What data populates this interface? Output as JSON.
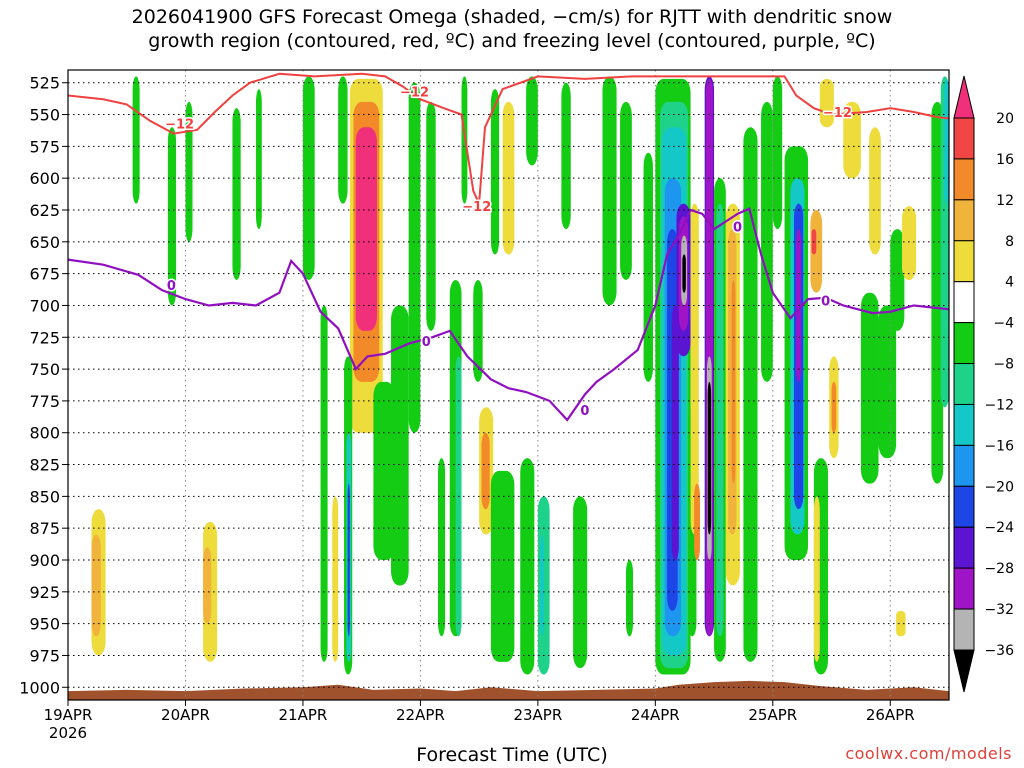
{
  "chart_data": {
    "type": "heatmap",
    "title_line1": "2026041900 GFS Forecast Omega (shaded, −cm/s) for RJTT with dendritic snow",
    "title_line2": "growth region (contoured, red, ºC) and freezing level (contoured, purple, ºC)",
    "xlabel": "Forecast Time (UTC)",
    "credit": "coolwx.com/models",
    "x_ticks": [
      "19APR",
      "20APR",
      "21APR",
      "22APR",
      "23APR",
      "24APR",
      "25APR",
      "26APR"
    ],
    "x_year": "2026",
    "y_ticks": [
      "525",
      "550",
      "575",
      "600",
      "625",
      "650",
      "675",
      "700",
      "725",
      "750",
      "775",
      "800",
      "825",
      "850",
      "875",
      "900",
      "925",
      "950",
      "975",
      "1000"
    ],
    "y_range_hpa": [
      515,
      1010
    ],
    "x_range_days": [
      0,
      7.5
    ],
    "colorbar": {
      "labels": [
        "20",
        "16",
        "12",
        "8",
        "4",
        "−4",
        "−8",
        "−12",
        "−16",
        "−20",
        "−24",
        "−28",
        "−32",
        "−36"
      ],
      "colors": [
        "#f0307a",
        "#f04646",
        "#f28a2a",
        "#f0b43c",
        "#eedc3c",
        "#ffffff",
        "#14cc14",
        "#1ed28a",
        "#14c8c8",
        "#1e96f0",
        "#1e46e6",
        "#5a14d2",
        "#a014c8",
        "#b4b4b4",
        "#000000"
      ]
    },
    "omega_bands": [
      {
        "x": 0.2,
        "w": 0.12,
        "p1": 860,
        "p2": 975,
        "v": 4
      },
      {
        "x": 0.2,
        "w": 0.08,
        "p1": 880,
        "p2": 960,
        "v": 8
      },
      {
        "x": 1.15,
        "w": 0.12,
        "p1": 870,
        "p2": 980,
        "v": 4
      },
      {
        "x": 1.15,
        "w": 0.07,
        "p1": 890,
        "p2": 950,
        "v": 8
      },
      {
        "x": 0.55,
        "w": 0.06,
        "p1": 520,
        "p2": 620,
        "v": -4
      },
      {
        "x": 0.85,
        "w": 0.07,
        "p1": 560,
        "p2": 700,
        "v": -4
      },
      {
        "x": 1.0,
        "w": 0.06,
        "p1": 540,
        "p2": 650,
        "v": -4
      },
      {
        "x": 1.4,
        "w": 0.07,
        "p1": 545,
        "p2": 680,
        "v": -4
      },
      {
        "x": 1.6,
        "w": 0.05,
        "p1": 530,
        "p2": 640,
        "v": -4
      },
      {
        "x": 2.0,
        "w": 0.1,
        "p1": 520,
        "p2": 680,
        "v": -4
      },
      {
        "x": 2.15,
        "w": 0.06,
        "p1": 700,
        "p2": 980,
        "v": -4
      },
      {
        "x": 2.25,
        "w": 0.05,
        "p1": 850,
        "p2": 980,
        "v": 4
      },
      {
        "x": 2.4,
        "w": 0.28,
        "p1": 522,
        "p2": 800,
        "v": 4
      },
      {
        "x": 2.43,
        "w": 0.22,
        "p1": 540,
        "p2": 760,
        "v": 12
      },
      {
        "x": 2.45,
        "w": 0.18,
        "p1": 560,
        "p2": 720,
        "v": 20
      },
      {
        "x": 2.3,
        "w": 0.08,
        "p1": 520,
        "p2": 620,
        "v": -4
      },
      {
        "x": 2.35,
        "w": 0.07,
        "p1": 740,
        "p2": 990,
        "v": -4
      },
      {
        "x": 2.37,
        "w": 0.04,
        "p1": 800,
        "p2": 980,
        "v": -12
      },
      {
        "x": 2.38,
        "w": 0.02,
        "p1": 840,
        "p2": 960,
        "v": -20
      },
      {
        "x": 2.6,
        "w": 0.18,
        "p1": 760,
        "p2": 900,
        "v": -4
      },
      {
        "x": 2.75,
        "w": 0.15,
        "p1": 700,
        "p2": 920,
        "v": -4
      },
      {
        "x": 2.9,
        "w": 0.1,
        "p1": 525,
        "p2": 800,
        "v": -4
      },
      {
        "x": 3.05,
        "w": 0.08,
        "p1": 540,
        "p2": 720,
        "v": -4
      },
      {
        "x": 3.15,
        "w": 0.06,
        "p1": 820,
        "p2": 960,
        "v": -4
      },
      {
        "x": 3.25,
        "w": 0.1,
        "p1": 680,
        "p2": 960,
        "v": -4
      },
      {
        "x": 3.3,
        "w": 0.05,
        "p1": 740,
        "p2": 960,
        "v": -8
      },
      {
        "x": 3.5,
        "w": 0.12,
        "p1": 780,
        "p2": 880,
        "v": 4
      },
      {
        "x": 3.52,
        "w": 0.07,
        "p1": 800,
        "p2": 860,
        "v": 12
      },
      {
        "x": 3.35,
        "w": 0.05,
        "p1": 520,
        "p2": 620,
        "v": -4
      },
      {
        "x": 3.6,
        "w": 0.07,
        "p1": 530,
        "p2": 660,
        "v": -4
      },
      {
        "x": 3.45,
        "w": 0.08,
        "p1": 680,
        "p2": 760,
        "v": -4
      },
      {
        "x": 3.6,
        "w": 0.2,
        "p1": 830,
        "p2": 980,
        "v": -4
      },
      {
        "x": 3.7,
        "w": 0.1,
        "p1": 540,
        "p2": 660,
        "v": 4
      },
      {
        "x": 3.9,
        "w": 0.1,
        "p1": 520,
        "p2": 590,
        "v": -4
      },
      {
        "x": 3.85,
        "w": 0.12,
        "p1": 820,
        "p2": 990,
        "v": -4
      },
      {
        "x": 4.0,
        "w": 0.1,
        "p1": 850,
        "p2": 990,
        "v": -8
      },
      {
        "x": 4.02,
        "w": 0.03,
        "p1": 880,
        "p2": 960,
        "v": -12
      },
      {
        "x": 4.2,
        "w": 0.08,
        "p1": 525,
        "p2": 640,
        "v": -4
      },
      {
        "x": 4.3,
        "w": 0.12,
        "p1": 850,
        "p2": 985,
        "v": -4
      },
      {
        "x": 4.55,
        "w": 0.12,
        "p1": 520,
        "p2": 700,
        "v": -4
      },
      {
        "x": 4.7,
        "w": 0.1,
        "p1": 540,
        "p2": 680,
        "v": -4
      },
      {
        "x": 4.75,
        "w": 0.06,
        "p1": 900,
        "p2": 960,
        "v": -4
      },
      {
        "x": 4.9,
        "w": 0.08,
        "p1": 580,
        "p2": 760,
        "v": -4
      },
      {
        "x": 5.0,
        "w": 0.3,
        "p1": 522,
        "p2": 990,
        "v": -4
      },
      {
        "x": 5.04,
        "w": 0.24,
        "p1": 540,
        "p2": 985,
        "v": -8
      },
      {
        "x": 5.06,
        "w": 0.2,
        "p1": 560,
        "p2": 975,
        "v": -12
      },
      {
        "x": 5.08,
        "w": 0.14,
        "p1": 600,
        "p2": 960,
        "v": -16
      },
      {
        "x": 5.1,
        "w": 0.09,
        "p1": 640,
        "p2": 940,
        "v": -20
      },
      {
        "x": 5.14,
        "w": 0.06,
        "p1": 700,
        "p2": 900,
        "v": -24
      },
      {
        "x": 5.18,
        "w": 0.12,
        "p1": 620,
        "p2": 740,
        "v": -24
      },
      {
        "x": 5.2,
        "w": 0.08,
        "p1": 630,
        "p2": 720,
        "v": -28
      },
      {
        "x": 5.22,
        "w": 0.05,
        "p1": 645,
        "p2": 700,
        "v": -32
      },
      {
        "x": 5.23,
        "w": 0.03,
        "p1": 660,
        "p2": 690,
        "v": -36
      },
      {
        "x": 5.28,
        "w": 0.07,
        "p1": 780,
        "p2": 960,
        "v": -4
      },
      {
        "x": 5.3,
        "w": 0.07,
        "p1": 620,
        "p2": 880,
        "v": 4
      },
      {
        "x": 5.33,
        "w": 0.05,
        "p1": 840,
        "p2": 900,
        "v": 12
      },
      {
        "x": 5.42,
        "w": 0.08,
        "p1": 520,
        "p2": 960,
        "v": -24
      },
      {
        "x": 5.43,
        "w": 0.06,
        "p1": 522,
        "p2": 960,
        "v": -28
      },
      {
        "x": 5.44,
        "w": 0.04,
        "p1": 740,
        "p2": 900,
        "v": -32
      },
      {
        "x": 5.445,
        "w": 0.03,
        "p1": 760,
        "p2": 880,
        "v": -36
      },
      {
        "x": 5.5,
        "w": 0.1,
        "p1": 600,
        "p2": 980,
        "v": -4
      },
      {
        "x": 5.52,
        "w": 0.06,
        "p1": 620,
        "p2": 960,
        "v": -8
      },
      {
        "x": 5.6,
        "w": 0.12,
        "p1": 620,
        "p2": 920,
        "v": 4
      },
      {
        "x": 5.62,
        "w": 0.07,
        "p1": 640,
        "p2": 880,
        "v": 8
      },
      {
        "x": 5.65,
        "w": 0.03,
        "p1": 680,
        "p2": 840,
        "v": 12
      },
      {
        "x": 5.75,
        "w": 0.12,
        "p1": 560,
        "p2": 980,
        "v": -4
      },
      {
        "x": 5.9,
        "w": 0.1,
        "p1": 540,
        "p2": 760,
        "v": -4
      },
      {
        "x": 6.0,
        "w": 0.08,
        "p1": 520,
        "p2": 640,
        "v": -4
      },
      {
        "x": 6.1,
        "w": 0.2,
        "p1": 575,
        "p2": 900,
        "v": -4
      },
      {
        "x": 6.15,
        "w": 0.12,
        "p1": 600,
        "p2": 880,
        "v": -12
      },
      {
        "x": 6.18,
        "w": 0.08,
        "p1": 620,
        "p2": 860,
        "v": -20
      },
      {
        "x": 6.2,
        "w": 0.04,
        "p1": 640,
        "p2": 760,
        "v": -28
      },
      {
        "x": 6.32,
        "w": 0.1,
        "p1": 625,
        "p2": 690,
        "v": 8
      },
      {
        "x": 6.33,
        "w": 0.04,
        "p1": 640,
        "p2": 660,
        "v": 16
      },
      {
        "x": 6.35,
        "w": 0.12,
        "p1": 820,
        "p2": 990,
        "v": -4
      },
      {
        "x": 6.35,
        "w": 0.05,
        "p1": 850,
        "p2": 980,
        "v": 4
      },
      {
        "x": 6.48,
        "w": 0.08,
        "p1": 740,
        "p2": 820,
        "v": 4
      },
      {
        "x": 6.5,
        "w": 0.04,
        "p1": 760,
        "p2": 800,
        "v": 12
      },
      {
        "x": 6.4,
        "w": 0.12,
        "p1": 522,
        "p2": 560,
        "v": 4
      },
      {
        "x": 6.6,
        "w": 0.15,
        "p1": 540,
        "p2": 600,
        "v": 4
      },
      {
        "x": 6.82,
        "w": 0.1,
        "p1": 560,
        "p2": 660,
        "v": 4
      },
      {
        "x": 6.75,
        "w": 0.15,
        "p1": 690,
        "p2": 840,
        "v": -4
      },
      {
        "x": 6.9,
        "w": 0.15,
        "p1": 700,
        "p2": 820,
        "v": -4
      },
      {
        "x": 7.0,
        "w": 0.12,
        "p1": 640,
        "p2": 720,
        "v": -4
      },
      {
        "x": 7.05,
        "w": 0.08,
        "p1": 940,
        "p2": 960,
        "v": 4
      },
      {
        "x": 7.1,
        "w": 0.12,
        "p1": 622,
        "p2": 680,
        "v": 4
      },
      {
        "x": 7.35,
        "w": 0.1,
        "p1": 540,
        "p2": 840,
        "v": -4
      },
      {
        "x": 7.43,
        "w": 0.07,
        "p1": 520,
        "p2": 780,
        "v": -8
      },
      {
        "x": 7.46,
        "w": 0.04,
        "p1": 522,
        "p2": 620,
        "v": -12
      }
    ],
    "dgz_top": {
      "label": "−12",
      "points": [
        [
          0,
          535
        ],
        [
          0.3,
          538
        ],
        [
          0.5,
          542
        ],
        [
          0.7,
          555
        ],
        [
          0.9,
          565
        ],
        [
          1.1,
          562
        ],
        [
          1.25,
          548
        ],
        [
          1.4,
          535
        ],
        [
          1.55,
          525
        ],
        [
          1.8,
          518
        ],
        [
          2.1,
          520
        ],
        [
          2.5,
          518
        ],
        [
          2.7,
          520
        ],
        [
          2.85,
          528
        ],
        [
          3.0,
          538
        ],
        [
          3.2,
          545
        ],
        [
          3.35,
          550
        ],
        [
          3.45,
          610
        ],
        [
          3.5,
          620
        ],
        [
          3.55,
          560
        ],
        [
          3.7,
          530
        ],
        [
          4.0,
          520
        ],
        [
          4.4,
          522
        ],
        [
          4.8,
          520
        ],
        [
          5.2,
          520
        ],
        [
          5.8,
          520
        ],
        [
          6.1,
          520
        ],
        [
          6.2,
          535
        ],
        [
          6.35,
          545
        ],
        [
          6.5,
          550
        ],
        [
          6.8,
          548
        ],
        [
          7.0,
          545
        ],
        [
          7.2,
          548
        ],
        [
          7.4,
          552
        ],
        [
          7.5,
          553
        ]
      ]
    },
    "freezing_level": {
      "label": "0",
      "points": [
        [
          0,
          664
        ],
        [
          0.3,
          668
        ],
        [
          0.6,
          676
        ],
        [
          0.8,
          688
        ],
        [
          1.0,
          695
        ],
        [
          1.2,
          700
        ],
        [
          1.4,
          698
        ],
        [
          1.6,
          700
        ],
        [
          1.8,
          690
        ],
        [
          1.9,
          665
        ],
        [
          2.0,
          675
        ],
        [
          2.15,
          705
        ],
        [
          2.3,
          718
        ],
        [
          2.45,
          750
        ],
        [
          2.55,
          740
        ],
        [
          2.7,
          738
        ],
        [
          2.9,
          730
        ],
        [
          3.1,
          725
        ],
        [
          3.25,
          720
        ],
        [
          3.4,
          740
        ],
        [
          3.6,
          758
        ],
        [
          3.75,
          765
        ],
        [
          3.9,
          768
        ],
        [
          4.1,
          775
        ],
        [
          4.25,
          790
        ],
        [
          4.4,
          770
        ],
        [
          4.5,
          760
        ],
        [
          4.65,
          750
        ],
        [
          4.85,
          735
        ],
        [
          5.0,
          700
        ],
        [
          5.1,
          660
        ],
        [
          5.2,
          645
        ],
        [
          5.3,
          625
        ],
        [
          5.4,
          628
        ],
        [
          5.5,
          640
        ],
        [
          5.6,
          634
        ],
        [
          5.7,
          628
        ],
        [
          5.8,
          624
        ],
        [
          5.9,
          660
        ],
        [
          6.0,
          690
        ],
        [
          6.15,
          710
        ],
        [
          6.3,
          695
        ],
        [
          6.45,
          694
        ],
        [
          6.6,
          700
        ],
        [
          6.85,
          706
        ],
        [
          7.0,
          705
        ],
        [
          7.2,
          700
        ],
        [
          7.4,
          702
        ],
        [
          7.5,
          703
        ]
      ]
    },
    "terrain": {
      "points": [
        [
          0,
          1003
        ],
        [
          0.5,
          1002
        ],
        [
          1.0,
          1003
        ],
        [
          1.5,
          1001
        ],
        [
          2.0,
          1000
        ],
        [
          2.3,
          998
        ],
        [
          2.6,
          1002
        ],
        [
          3.0,
          1001
        ],
        [
          3.3,
          1003
        ],
        [
          3.6,
          1000
        ],
        [
          4.0,
          1003
        ],
        [
          4.5,
          1002
        ],
        [
          5.0,
          1001
        ],
        [
          5.2,
          998
        ],
        [
          5.5,
          996
        ],
        [
          5.8,
          995
        ],
        [
          6.1,
          996
        ],
        [
          6.4,
          999
        ],
        [
          6.8,
          1002
        ],
        [
          7.2,
          1000
        ],
        [
          7.5,
          1003
        ]
      ]
    },
    "grid": true,
    "legend_placement": "right"
  }
}
